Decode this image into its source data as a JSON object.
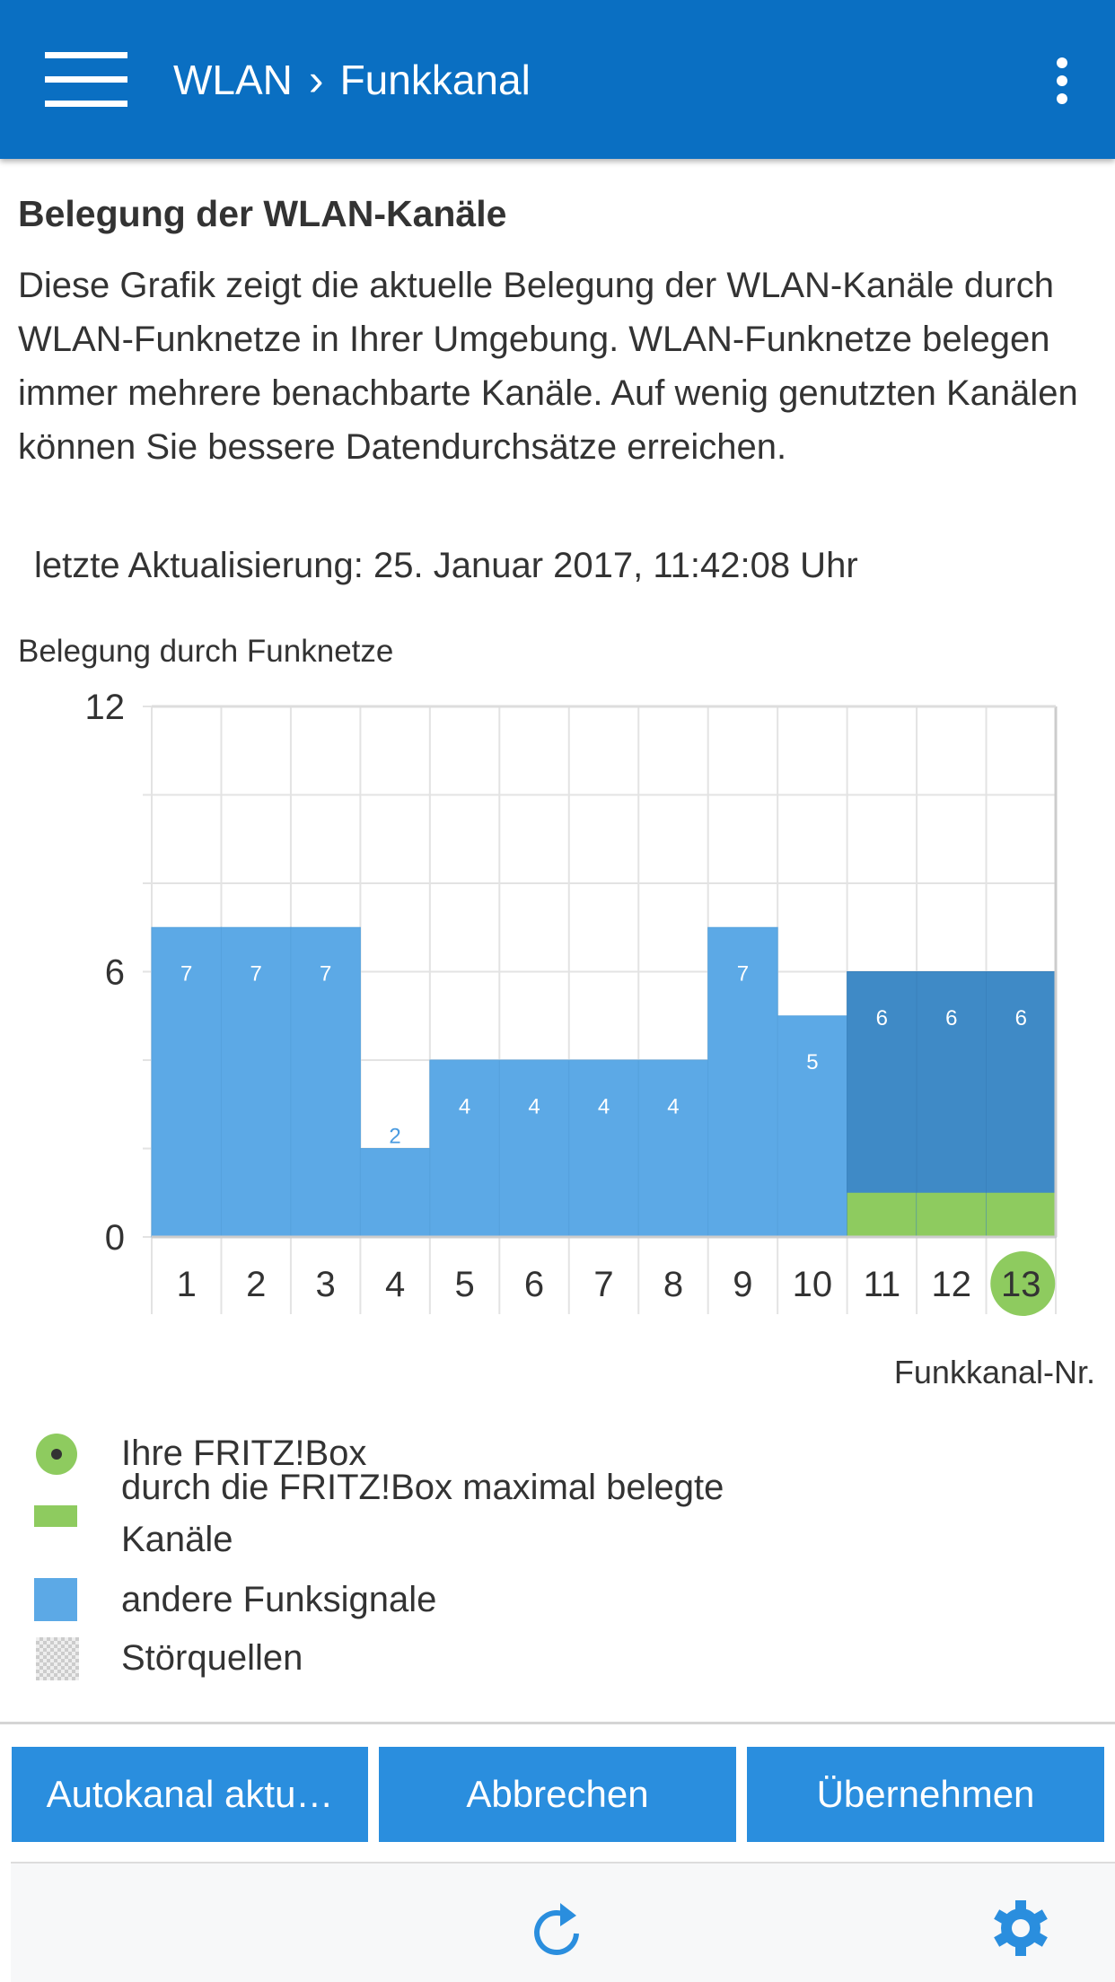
{
  "header": {
    "crumb_parent": "WLAN",
    "crumb_sep": "›",
    "crumb_current": "Funkkanal"
  },
  "section": {
    "title": "Belegung der WLAN-Kanäle",
    "description": "Diese Grafik zeigt die aktuelle Belegung der WLAN-Kanäle durch WLAN-Funknetze in Ihrer Umgebung. WLAN-Funknetze belegen immer mehrere benachbarte Kanäle. Auf wenig genutzten Kanälen können Sie bessere Datendurchsätze erreichen.",
    "last_update": "letzte Aktualisierung: 25. Januar 2017, 11:42:08 Uhr"
  },
  "chart_data": {
    "type": "bar",
    "ylabel": "Belegung durch Funknetze",
    "xlabel": "Funkkanal-Nr.",
    "categories": [
      "1",
      "2",
      "3",
      "4",
      "5",
      "6",
      "7",
      "8",
      "9",
      "10",
      "11",
      "12",
      "13"
    ],
    "ylim": [
      0,
      12
    ],
    "yticks": [
      0,
      6,
      12
    ],
    "grid": true,
    "series": [
      {
        "name": "andere Funksignale",
        "values": [
          7,
          7,
          7,
          2,
          4,
          4,
          4,
          4,
          7,
          5,
          6,
          6,
          6
        ]
      },
      {
        "name": "durch die FRITZ!Box maximal belegte Kanäle",
        "values": [
          0,
          0,
          0,
          0,
          0,
          0,
          0,
          0,
          0,
          0,
          1,
          1,
          1
        ]
      }
    ],
    "highlight_channel": "13",
    "colors": {
      "other": "#5ca9e6",
      "overlap": "#3f8ac6",
      "fritzbox": "#8ecb5f"
    }
  },
  "legend": [
    {
      "icon": "fritzbox-dot-icon",
      "label": "Ihre FRITZ!Box"
    },
    {
      "icon": "green-bar-icon",
      "label": "durch die FRITZ!Box maximal belegte Kanäle"
    },
    {
      "icon": "blue-square-icon",
      "label": "andere Funksignale"
    },
    {
      "icon": "checker-icon",
      "label": "Störquellen"
    }
  ],
  "buttons": {
    "autochannel": "Autokanal aktu…",
    "cancel": "Abbrechen",
    "apply": "Übernehmen"
  },
  "bottom_bar": {
    "icons": [
      "refresh-icon",
      "gear-icon"
    ]
  }
}
